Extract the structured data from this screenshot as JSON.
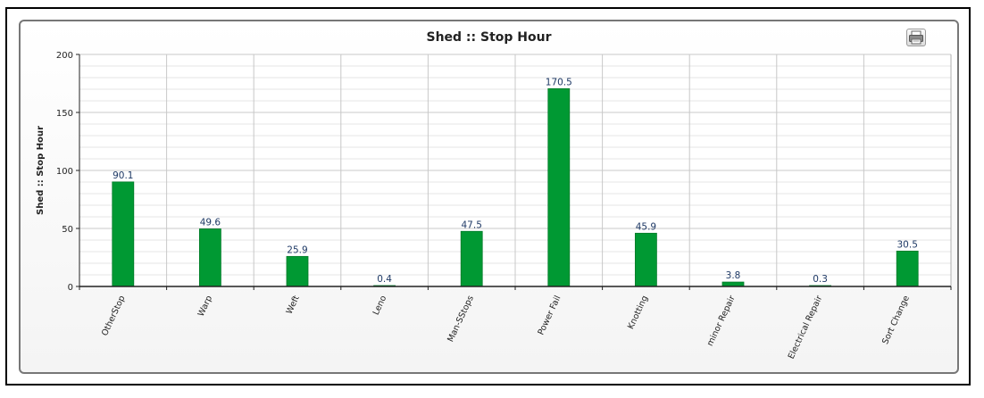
{
  "chart_data": {
    "type": "bar",
    "title": "Shed :: Stop Hour",
    "xlabel": "",
    "ylabel": "Shed :: Stop Hour",
    "categories": [
      "OtherStop",
      "Warp",
      "Weft",
      "Leno",
      "Man-SStops",
      "Power Fail",
      "Knotting",
      "minor Repair",
      "Electrical Repair",
      "Sort Change"
    ],
    "values": [
      90.1,
      49.6,
      25.9,
      0.4,
      47.5,
      170.5,
      45.9,
      3.8,
      0.3,
      30.5
    ],
    "data_labels": [
      "90.1",
      "49.6",
      "25.9",
      "0.4",
      "47.5",
      "170.5",
      "45.9",
      "3.8",
      "0.3",
      "30.5"
    ],
    "ylim": [
      0,
      200
    ],
    "yticks": [
      0,
      50,
      100,
      150,
      200
    ],
    "grid": true,
    "legend": "none",
    "bar_color": "#009933"
  },
  "toolbar": {
    "print_icon": "printer-icon"
  }
}
